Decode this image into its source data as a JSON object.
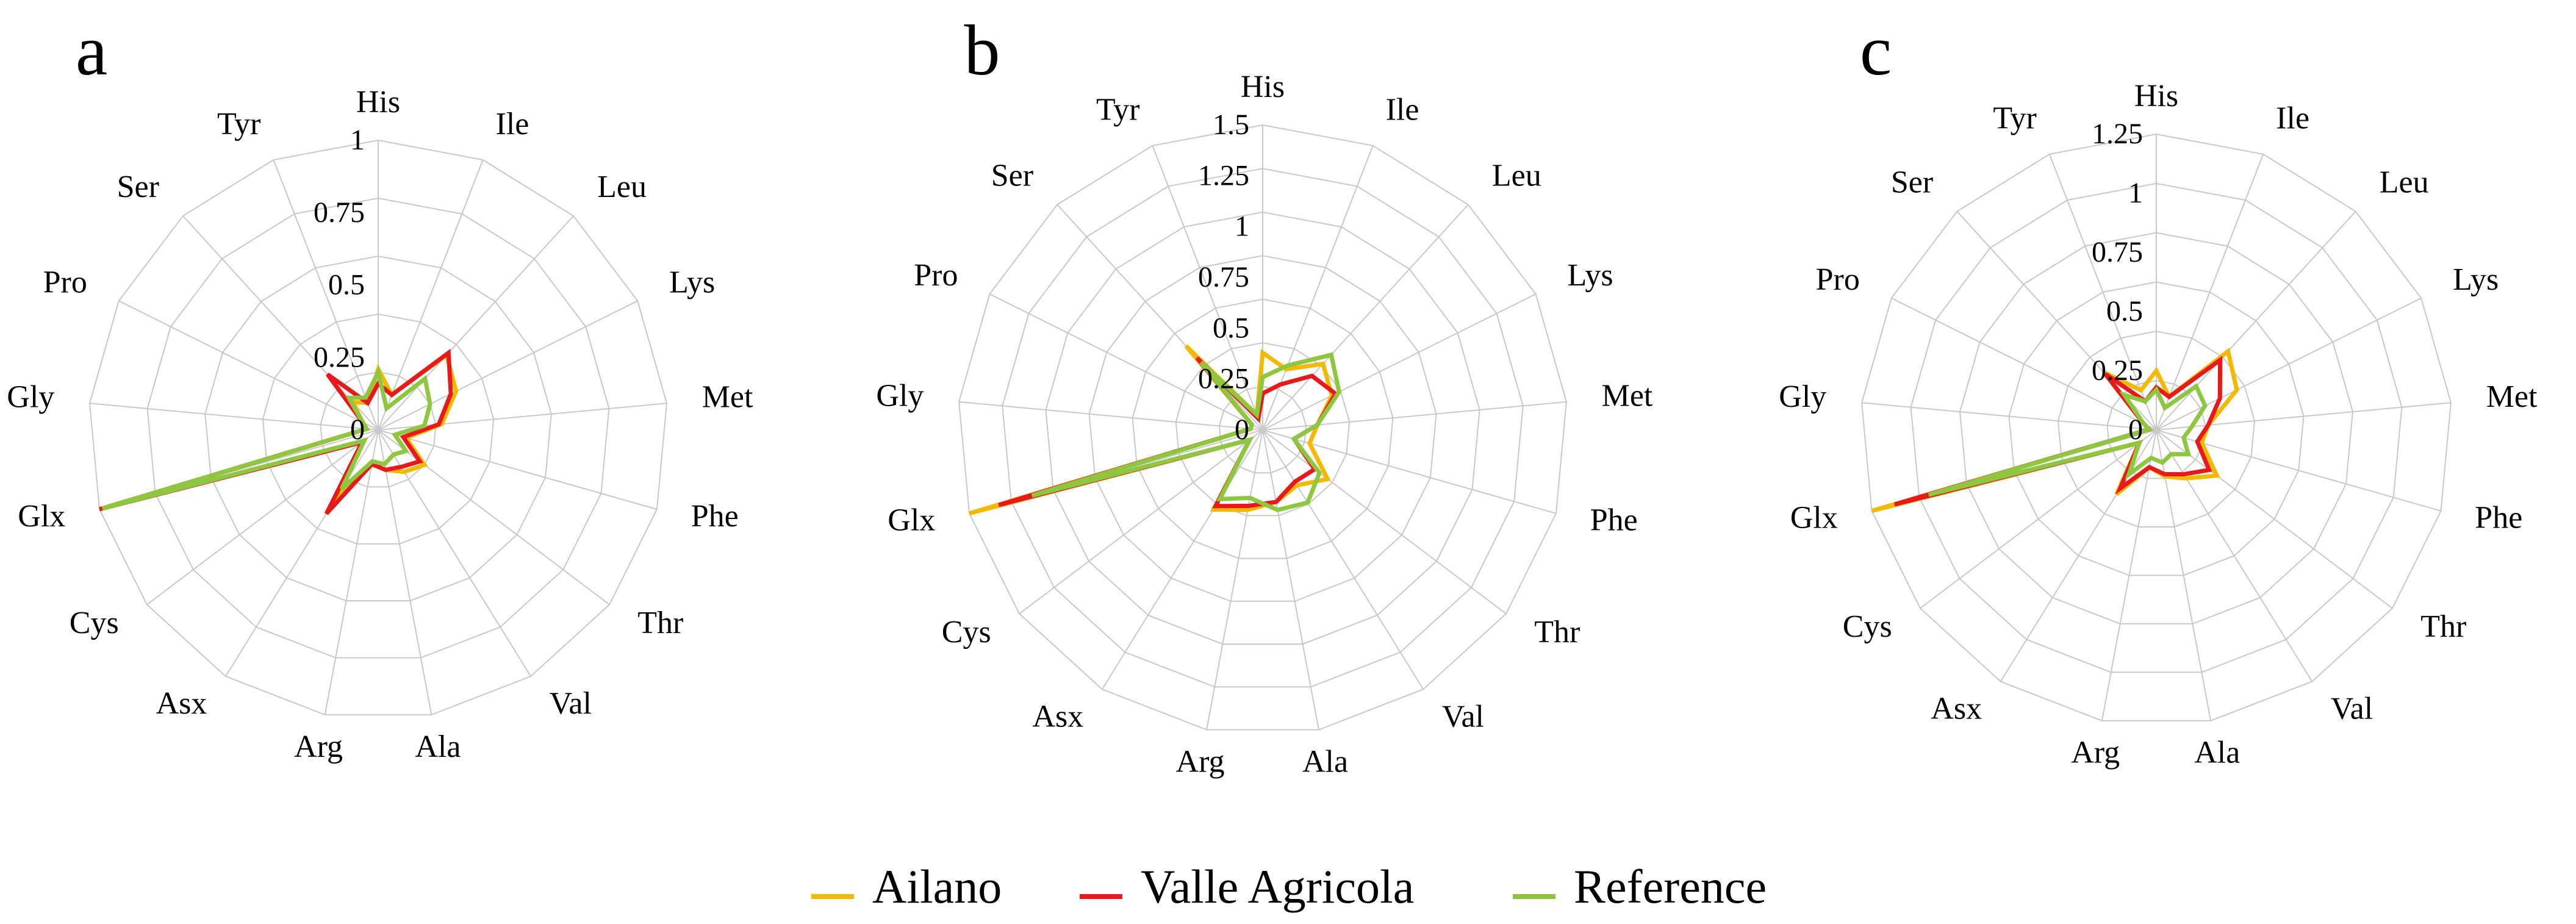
{
  "chart_data": [
    {
      "type": "radar",
      "panel_label": "a",
      "categories": [
        "His",
        "Ile",
        "Leu",
        "Lys",
        "Met",
        "Phe",
        "Thr",
        "Val",
        "Ala",
        "Arg",
        "Asx",
        "Cys",
        "Glx",
        "Gly",
        "Pro",
        "Ser",
        "Tyr"
      ],
      "ticks": [
        "0",
        "0.25",
        "0.5",
        "0.75",
        "1"
      ],
      "rmax": 1,
      "rings": 5,
      "series": [
        {
          "name": "Ailano",
          "color": "#f5b800",
          "values": [
            0.21,
            0.13,
            0.35,
            0.3,
            0.22,
            0.1,
            0.2,
            0.17,
            0.14,
            0.12,
            0.28,
            0.07,
            1.0,
            0.04,
            0.06,
            0.13,
            0.1
          ]
        },
        {
          "name": "Valle Agricola",
          "color": "#e8191b",
          "values": [
            0.16,
            0.13,
            0.36,
            0.28,
            0.21,
            0.09,
            0.18,
            0.15,
            0.14,
            0.12,
            0.34,
            0.07,
            1.0,
            0.04,
            0.06,
            0.26,
            0.1
          ]
        },
        {
          "name": "Reference",
          "color": "#8dc63f",
          "values": [
            0.2,
            0.08,
            0.24,
            0.2,
            0.16,
            0.06,
            0.12,
            0.1,
            0.12,
            0.11,
            0.24,
            0.06,
            0.99,
            0.04,
            0.06,
            0.15,
            0.12
          ]
        }
      ]
    },
    {
      "type": "radar",
      "panel_label": "b",
      "categories": [
        "His",
        "Ile",
        "Leu",
        "Lys",
        "Met",
        "Phe",
        "Thr",
        "Val",
        "Ala",
        "Arg",
        "Asx",
        "Cys",
        "Glx",
        "Gly",
        "Pro",
        "Ser",
        "Tyr"
      ],
      "ticks": [
        "0",
        "0.25",
        "0.5",
        "0.75",
        "1",
        "1.25",
        "1.5"
      ],
      "rmax": 1.5,
      "rings": 7,
      "series": [
        {
          "name": "Ailano",
          "color": "#f5b800",
          "values": [
            0.38,
            0.32,
            0.44,
            0.38,
            0.27,
            0.24,
            0.4,
            0.32,
            0.36,
            0.4,
            0.46,
            0.08,
            1.5,
            0.06,
            0.06,
            0.56,
            0.08
          ]
        },
        {
          "name": "Valle Agricola",
          "color": "#e8191b",
          "values": [
            0.18,
            0.24,
            0.36,
            0.4,
            0.27,
            0.16,
            0.32,
            0.3,
            0.36,
            0.38,
            0.44,
            0.08,
            1.35,
            0.06,
            0.06,
            0.48,
            0.06
          ]
        },
        {
          "name": "Reference",
          "color": "#8dc63f",
          "values": [
            0.26,
            0.34,
            0.5,
            0.42,
            0.27,
            0.16,
            0.35,
            0.42,
            0.4,
            0.34,
            0.4,
            0.08,
            1.18,
            0.06,
            0.06,
            0.45,
            0.08
          ]
        }
      ]
    },
    {
      "type": "radar",
      "panel_label": "c",
      "categories": [
        "His",
        "Ile",
        "Leu",
        "Lys",
        "Met",
        "Phe",
        "Thr",
        "Val",
        "Ala",
        "Arg",
        "Asx",
        "Cys",
        "Glx",
        "Gly",
        "Pro",
        "Ser",
        "Tyr"
      ],
      "ticks": [
        "0",
        "0.25",
        "0.5",
        "0.75",
        "1",
        "1.25"
      ],
      "rmax": 1.25,
      "rings": 6,
      "series": [
        {
          "name": "Ailano",
          "color": "#f5b800",
          "values": [
            0.25,
            0.15,
            0.45,
            0.38,
            0.22,
            0.2,
            0.32,
            0.24,
            0.2,
            0.16,
            0.32,
            0.09,
            1.25,
            0.03,
            0.06,
            0.33,
            0.18
          ]
        },
        {
          "name": "Valle Agricola",
          "color": "#e8191b",
          "values": [
            0.18,
            0.15,
            0.4,
            0.3,
            0.22,
            0.18,
            0.28,
            0.22,
            0.19,
            0.16,
            0.29,
            0.09,
            1.15,
            0.03,
            0.06,
            0.32,
            0.13
          ]
        },
        {
          "name": "Reference",
          "color": "#8dc63f",
          "values": [
            0.17,
            0.1,
            0.25,
            0.23,
            0.15,
            0.12,
            0.17,
            0.12,
            0.14,
            0.12,
            0.22,
            0.09,
            1.0,
            0.03,
            0.06,
            0.2,
            0.13
          ]
        }
      ]
    }
  ],
  "legend": [
    {
      "label": "Ailano",
      "color": "#f5b800"
    },
    {
      "label": "Valle Agricola",
      "color": "#e8191b"
    },
    {
      "label": "Reference",
      "color": "#8dc63f"
    }
  ]
}
